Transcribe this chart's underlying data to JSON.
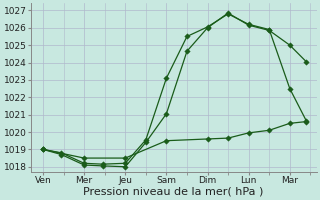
{
  "background_color": "#c8e8e0",
  "grid_color": "#b0b8cc",
  "line_color": "#1a5c1a",
  "marker_size": 2.8,
  "linewidth": 0.9,
  "x_labels": [
    "Ven",
    "Mer",
    "Jeu",
    "Sam",
    "Dim",
    "Lun",
    "Mar"
  ],
  "x_tick_positions": [
    0,
    1,
    2,
    3,
    4,
    5,
    6
  ],
  "line1_x": [
    0,
    0.45,
    1.0,
    1.45,
    2.0,
    2.5,
    3.0,
    3.5,
    4.0,
    4.5,
    5.0,
    5.5,
    6.0,
    6.4
  ],
  "line1_y": [
    1019.0,
    1018.7,
    1018.1,
    1018.05,
    1018.0,
    1019.4,
    1021.05,
    1024.65,
    1026.0,
    1026.85,
    1026.15,
    1025.85,
    1025.0,
    1024.05
  ],
  "line2_x": [
    0,
    0.45,
    1.0,
    1.45,
    2.0,
    2.5,
    3.0,
    3.5,
    4.0,
    4.5,
    5.0,
    5.5,
    6.0,
    6.4
  ],
  "line2_y": [
    1019.0,
    1018.8,
    1018.2,
    1018.15,
    1018.2,
    1019.55,
    1023.1,
    1025.5,
    1026.05,
    1026.8,
    1026.2,
    1025.9,
    1022.5,
    1020.65
  ],
  "line3_x": [
    0,
    1.0,
    2.0,
    3.0,
    4.0,
    4.5,
    5.0,
    5.5,
    6.0,
    6.4
  ],
  "line3_y": [
    1019.0,
    1018.5,
    1018.5,
    1019.5,
    1019.6,
    1019.65,
    1019.95,
    1020.1,
    1020.5,
    1020.6
  ],
  "ylim": [
    1017.7,
    1027.4
  ],
  "yticks": [
    1018,
    1019,
    1020,
    1021,
    1022,
    1023,
    1024,
    1025,
    1026,
    1027
  ],
  "xlim": [
    -0.3,
    6.65
  ],
  "xlabel": "Pression niveau de la mer( hPa )",
  "xlabel_fontsize": 8.0,
  "tick_fontsize": 6.5,
  "spine_color": "#888888"
}
